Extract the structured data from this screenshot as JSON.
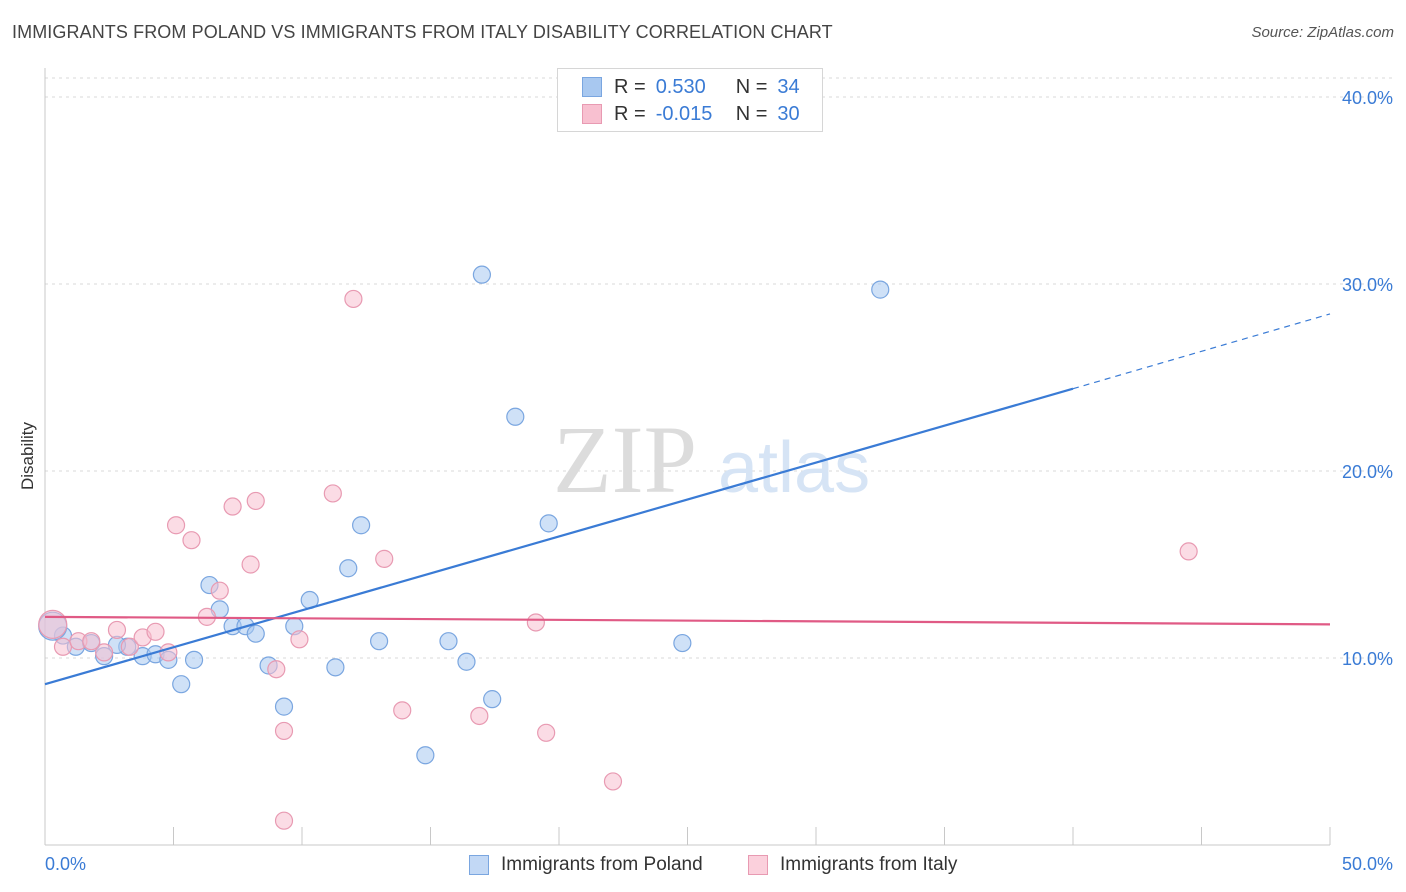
{
  "title": "IMMIGRANTS FROM POLAND VS IMMIGRANTS FROM ITALY DISABILITY CORRELATION CHART",
  "source": "Source: ZipAtlas.com",
  "watermark": {
    "zip": "ZIP",
    "atlas": "atlas"
  },
  "legend_top": [
    {
      "r_label": "R =",
      "r_value": "0.530",
      "n_label": "N =",
      "n_value": "34",
      "color": "#a8c8f0",
      "border": "#7aa6e0"
    },
    {
      "r_label": "R =",
      "r_value": "-0.015",
      "n_label": "N =",
      "n_value": "30",
      "color": "#f8c0d0",
      "border": "#e89ab2"
    }
  ],
  "legend_bottom": [
    {
      "label": "Immigrants from Poland",
      "color": "#c2d8f5",
      "border": "#7aa6e0"
    },
    {
      "label": "Immigrants from Italy",
      "color": "#fbd0dc",
      "border": "#e89ab2"
    }
  ],
  "chart_data": {
    "type": "scatter",
    "xlabel": "",
    "ylabel": "Disability",
    "xlim": [
      0,
      50
    ],
    "ylim": [
      0,
      40
    ],
    "x_tick_labels": [
      "0.0%",
      "50.0%"
    ],
    "y_tick_labels": [
      "10.0%",
      "20.0%",
      "30.0%",
      "40.0%"
    ],
    "y_ticks": [
      10,
      20,
      30,
      40
    ],
    "series": [
      {
        "name": "Immigrants from Poland",
        "color": "#3a7bd5",
        "fill": "rgba(168,200,240,0.55)",
        "stroke": "#7aa6e0",
        "points": [
          [
            0.7,
            11.2
          ],
          [
            1.2,
            10.6
          ],
          [
            1.8,
            10.8
          ],
          [
            2.3,
            10.1
          ],
          [
            3.2,
            10.6
          ],
          [
            3.8,
            10.1
          ],
          [
            4.3,
            10.2
          ],
          [
            4.8,
            9.9
          ],
          [
            5.3,
            8.6
          ],
          [
            5.8,
            9.9
          ],
          [
            6.4,
            13.9
          ],
          [
            6.8,
            12.6
          ],
          [
            7.3,
            11.7
          ],
          [
            7.8,
            11.7
          ],
          [
            8.2,
            11.3
          ],
          [
            8.7,
            9.6
          ],
          [
            9.3,
            7.4
          ],
          [
            9.7,
            11.7
          ],
          [
            10.3,
            13.1
          ],
          [
            11.3,
            9.5
          ],
          [
            11.8,
            14.8
          ],
          [
            12.3,
            17.1
          ],
          [
            13.0,
            10.9
          ],
          [
            14.8,
            4.8
          ],
          [
            15.7,
            10.9
          ],
          [
            16.4,
            9.8
          ],
          [
            17.0,
            30.5
          ],
          [
            17.4,
            7.8
          ],
          [
            18.3,
            22.9
          ],
          [
            19.6,
            17.2
          ],
          [
            24.8,
            10.8
          ],
          [
            32.5,
            29.7
          ],
          [
            0.3,
            11.7
          ],
          [
            2.8,
            10.7
          ]
        ],
        "trend": {
          "x0": 0,
          "y0": 8.6,
          "x1": 40,
          "y1": 24.4,
          "x_dash_end": 50,
          "y_dash_end": 28.4
        }
      },
      {
        "name": "Immigrants from Italy",
        "color": "#e05a85",
        "fill": "rgba(248,192,208,0.55)",
        "stroke": "#e89ab2",
        "points": [
          [
            0.3,
            11.8
          ],
          [
            0.7,
            10.6
          ],
          [
            1.3,
            10.9
          ],
          [
            1.8,
            10.9
          ],
          [
            2.3,
            10.3
          ],
          [
            2.8,
            11.5
          ],
          [
            3.3,
            10.6
          ],
          [
            3.8,
            11.1
          ],
          [
            4.3,
            11.4
          ],
          [
            4.8,
            10.3
          ],
          [
            5.1,
            17.1
          ],
          [
            5.7,
            16.3
          ],
          [
            6.3,
            12.2
          ],
          [
            6.8,
            13.6
          ],
          [
            7.3,
            18.1
          ],
          [
            8.0,
            15.0
          ],
          [
            8.2,
            18.4
          ],
          [
            9.0,
            9.4
          ],
          [
            9.3,
            6.1
          ],
          [
            9.3,
            1.3
          ],
          [
            9.9,
            11.0
          ],
          [
            11.2,
            18.8
          ],
          [
            12.0,
            29.2
          ],
          [
            13.2,
            15.3
          ],
          [
            13.9,
            7.2
          ],
          [
            16.9,
            6.9
          ],
          [
            19.1,
            11.9
          ],
          [
            19.5,
            6.0
          ],
          [
            22.1,
            3.4
          ],
          [
            44.5,
            15.7
          ]
        ],
        "trend": {
          "x0": 0,
          "y0": 12.2,
          "x1": 50,
          "y1": 11.8
        }
      }
    ]
  }
}
